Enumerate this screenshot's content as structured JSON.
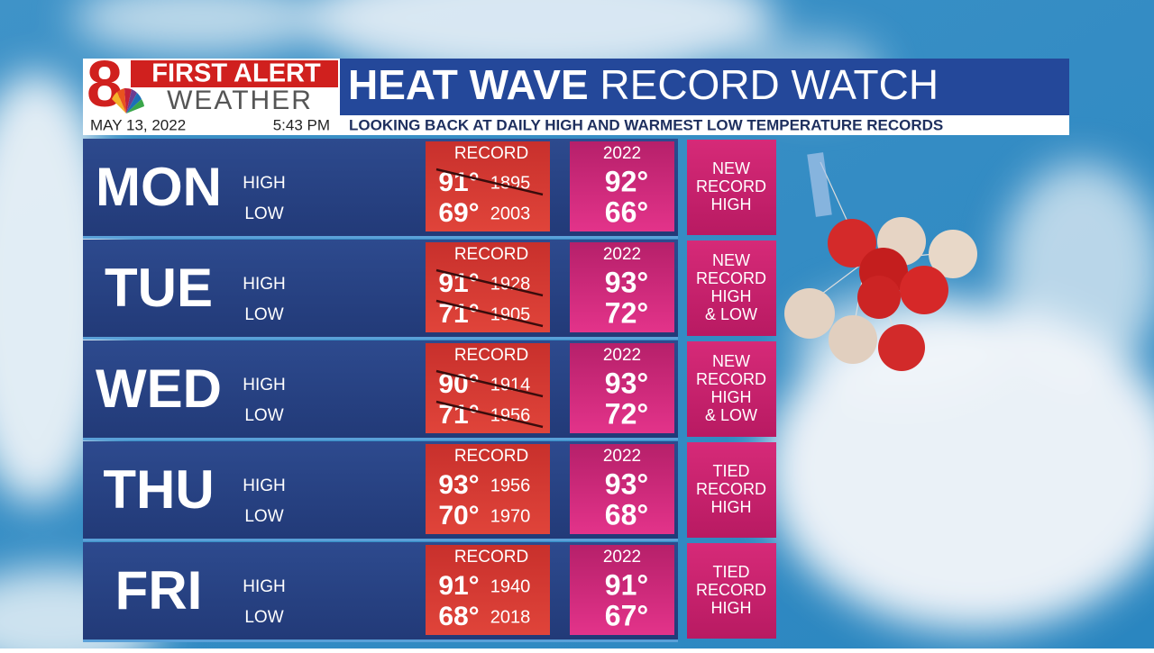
{
  "logo": {
    "number": "8",
    "line1": "FIRST ALERT",
    "line2": "WEATHER"
  },
  "date": "MAY 13, 2022",
  "time": "5:43 PM",
  "title": {
    "bold": "HEAT WAVE",
    "light": "RECORD WATCH"
  },
  "subtitle": "LOOKING BACK AT DAILY HIGH AND WARMEST LOW TEMPERATURE RECORDS",
  "rows": [
    {
      "day": "MON",
      "high_label": "HIGH",
      "low_label": "LOW",
      "record_label": "RECORD",
      "record_high": {
        "temp": "91°",
        "year": "1895",
        "struck": true
      },
      "record_low": {
        "temp": "69°",
        "year": "2003",
        "struck": false
      },
      "current_label": "2022",
      "current_high": "92°",
      "current_low": "66°",
      "note": [
        "NEW",
        "RECORD",
        "HIGH"
      ]
    },
    {
      "day": "TUE",
      "high_label": "HIGH",
      "low_label": "LOW",
      "record_label": "RECORD",
      "record_high": {
        "temp": "91°",
        "year": "1928",
        "struck": true
      },
      "record_low": {
        "temp": "71°",
        "year": "1905",
        "struck": true
      },
      "current_label": "2022",
      "current_high": "93°",
      "current_low": "72°",
      "note": [
        "NEW",
        "RECORD",
        "HIGH",
        "& LOW"
      ]
    },
    {
      "day": "WED",
      "high_label": "HIGH",
      "low_label": "LOW",
      "record_label": "RECORD",
      "record_high": {
        "temp": "90°",
        "year": "1914",
        "struck": true
      },
      "record_low": {
        "temp": "71°",
        "year": "1956",
        "struck": true
      },
      "current_label": "2022",
      "current_high": "93°",
      "current_low": "72°",
      "note": [
        "NEW",
        "RECORD",
        "HIGH",
        "& LOW"
      ]
    },
    {
      "day": "THU",
      "high_label": "HIGH",
      "low_label": "LOW",
      "record_label": "RECORD",
      "record_high": {
        "temp": "93°",
        "year": "1956",
        "struck": false
      },
      "record_low": {
        "temp": "70°",
        "year": "1970",
        "struck": false
      },
      "current_label": "2022",
      "current_high": "93°",
      "current_low": "68°",
      "note": [
        "TIED",
        "RECORD",
        "HIGH"
      ]
    },
    {
      "day": "FRI",
      "high_label": "HIGH",
      "low_label": "LOW",
      "record_label": "RECORD",
      "record_high": {
        "temp": "91°",
        "year": "1940",
        "struck": false
      },
      "record_low": {
        "temp": "68°",
        "year": "2018",
        "struck": false
      },
      "current_label": "2022",
      "current_high": "91°",
      "current_low": "67°",
      "note": [
        "TIED",
        "RECORD",
        "HIGH"
      ]
    }
  ]
}
